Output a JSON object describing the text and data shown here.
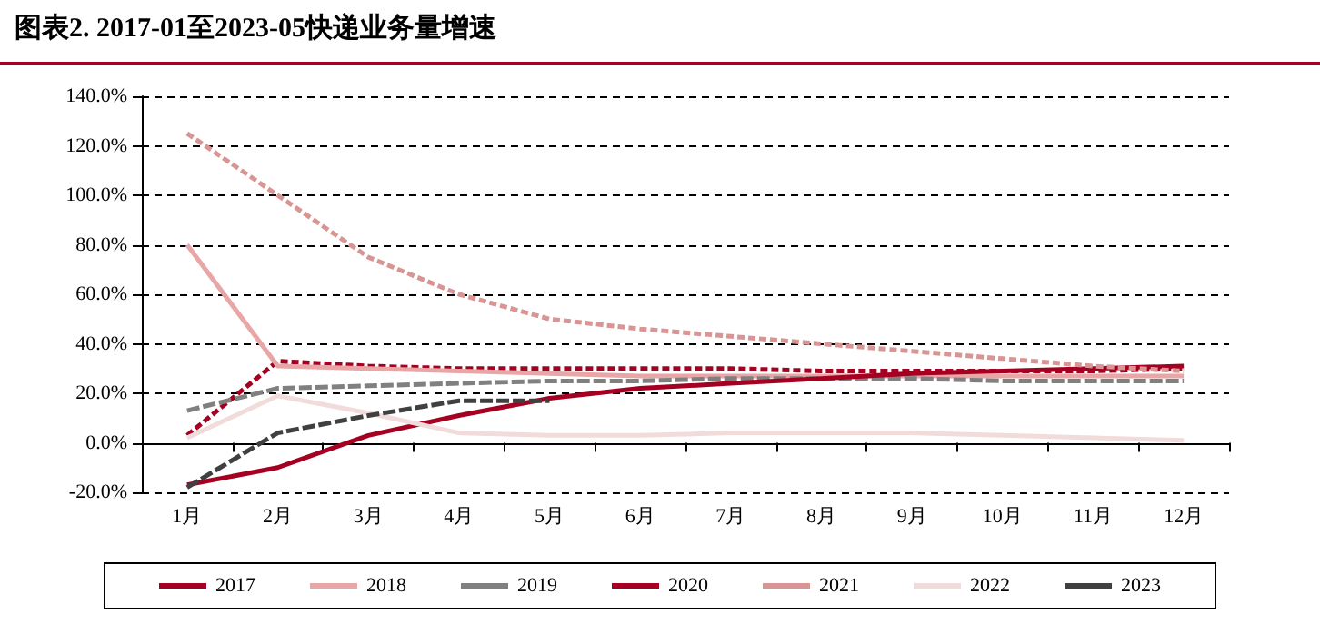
{
  "chart_data": {
    "type": "line",
    "title": "图表2. 2017-01至2023-05快递业务量增速",
    "categories": [
      "1月",
      "2月",
      "3月",
      "4月",
      "5月",
      "6月",
      "7月",
      "8月",
      "9月",
      "10月",
      "11月",
      "12月"
    ],
    "series": [
      {
        "name": "2017",
        "color": "#a50021",
        "line_style": "dotted",
        "values": [
          3,
          33,
          31,
          30,
          30,
          30,
          30,
          29,
          29,
          29,
          29,
          30
        ]
      },
      {
        "name": "2018",
        "color": "#e8a6a6",
        "line_style": "solid",
        "values": [
          80,
          31,
          30,
          29,
          28,
          27,
          27,
          27,
          27,
          27,
          27,
          27
        ]
      },
      {
        "name": "2019",
        "color": "#808080",
        "line_style": "dashed",
        "values": [
          13,
          22,
          23,
          24,
          25,
          25,
          26,
          26,
          26,
          25,
          25,
          25
        ]
      },
      {
        "name": "2020",
        "color": "#a50021",
        "line_style": "solid",
        "values": [
          -17,
          -10,
          3,
          11,
          18,
          22,
          24,
          26,
          28,
          29,
          30,
          31
        ]
      },
      {
        "name": "2021",
        "color": "#d99594",
        "line_style": "dotted",
        "values": [
          125,
          100,
          75,
          60,
          50,
          46,
          43,
          40,
          37,
          34,
          31,
          29
        ]
      },
      {
        "name": "2022",
        "color": "#f2dcdb",
        "line_style": "solid",
        "values": [
          2,
          19,
          12,
          4,
          3,
          3,
          4,
          4,
          4,
          3,
          2,
          1
        ]
      },
      {
        "name": "2023",
        "color": "#404040",
        "line_style": "dashed",
        "values": [
          -18,
          4,
          11,
          17,
          17,
          null,
          null,
          null,
          null,
          null,
          null,
          null
        ]
      }
    ],
    "ylim": [
      -20,
      140
    ],
    "yticks": [
      {
        "value": -20,
        "label": "-20.0%"
      },
      {
        "value": 0,
        "label": "0.0%"
      },
      {
        "value": 20,
        "label": "20.0%"
      },
      {
        "value": 40,
        "label": "40.0%"
      },
      {
        "value": 60,
        "label": "60.0%"
      },
      {
        "value": 80,
        "label": "80.0%"
      },
      {
        "value": 100,
        "label": "100.0%"
      },
      {
        "value": 120,
        "label": "120.0%"
      },
      {
        "value": 140,
        "label": "140.0%"
      }
    ],
    "grid": "y",
    "legend": "bottom",
    "marker": "none"
  }
}
